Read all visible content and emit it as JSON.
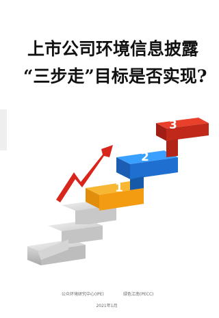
{
  "title": {
    "line1": "上市公司环境信息披露",
    "line2": "“三步走”目标是否实现?"
  },
  "steps": [
    "1",
    "2",
    "3"
  ],
  "footer": {
    "organizations": [
      "公众环境研究中心(IPE)",
      "绿色江南(PECC)"
    ],
    "date": "2021年1月"
  }
}
